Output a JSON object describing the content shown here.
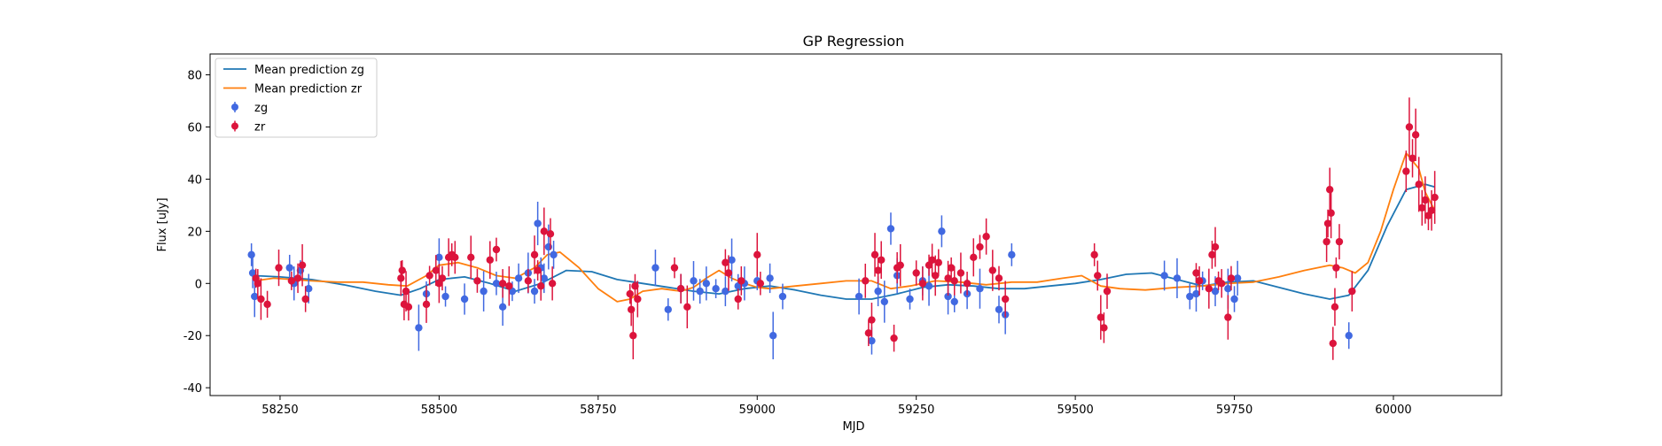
{
  "chart_data": {
    "type": "scatter",
    "title": "GP Regression",
    "xlabel": "MJD",
    "ylabel": "Flux [uJy]",
    "xlim": [
      58140,
      60170
    ],
    "ylim": [
      -43,
      88
    ],
    "xticks": [
      58250,
      58500,
      58750,
      59000,
      59250,
      59500,
      59750,
      60000
    ],
    "yticks": [
      -40,
      -20,
      0,
      20,
      40,
      60,
      80
    ],
    "legend_position": "top-left",
    "grid": false,
    "legend": [
      {
        "label": "Mean prediction zg",
        "kind": "line",
        "color": "#1f77b4"
      },
      {
        "label": "Mean prediction zr",
        "kind": "line",
        "color": "#ff7f0e"
      },
      {
        "label": "zg",
        "kind": "errorbar",
        "color": "#4169e1"
      },
      {
        "label": "zr",
        "kind": "errorbar",
        "color": "#dc143c"
      }
    ],
    "lines": [
      {
        "name": "Mean prediction zg",
        "color": "#1f77b4",
        "x": [
          58210,
          58250,
          58300,
          58350,
          58400,
          58440,
          58470,
          58500,
          58540,
          58580,
          58620,
          58660,
          58700,
          58740,
          58780,
          58820,
          58860,
          58900,
          58940,
          58980,
          59020,
          59060,
          59100,
          59140,
          59180,
          59220,
          59260,
          59300,
          59340,
          59380,
          59420,
          59460,
          59500,
          59540,
          59580,
          59620,
          59660,
          59700,
          59740,
          59780,
          59820,
          59860,
          59900,
          59930,
          59960,
          59990,
          60020,
          60050,
          60065
        ],
        "y": [
          3,
          2.5,
          1.5,
          -0.5,
          -3,
          -4.5,
          -2,
          1.5,
          2.5,
          0,
          -3,
          0,
          5,
          4.5,
          1.5,
          0,
          -1.5,
          -3,
          -4,
          -2,
          -1,
          -2.5,
          -4.5,
          -6,
          -6,
          -4,
          -1.5,
          -0.5,
          -1,
          -2,
          -2,
          -1,
          0,
          1.5,
          3.5,
          4,
          1.5,
          -1,
          0.5,
          1,
          -1.5,
          -4,
          -6,
          -4.5,
          5,
          22,
          36,
          38,
          37
        ]
      },
      {
        "name": "Mean prediction zr",
        "color": "#ff7f0e",
        "x": [
          58210,
          58240,
          58270,
          58300,
          58340,
          58380,
          58420,
          58450,
          58480,
          58500,
          58530,
          58560,
          58590,
          58620,
          58650,
          58670,
          58690,
          58720,
          58750,
          58780,
          58800,
          58820,
          58850,
          58880,
          58900,
          58920,
          58940,
          58960,
          58980,
          59000,
          59020,
          59060,
          59100,
          59140,
          59180,
          59210,
          59240,
          59280,
          59320,
          59360,
          59400,
          59440,
          59480,
          59510,
          59540,
          59570,
          59610,
          59660,
          59700,
          59740,
          59780,
          59820,
          59860,
          59900,
          59920,
          59940,
          59960,
          59980,
          60000,
          60020,
          60040,
          60050,
          60065
        ],
        "y": [
          1,
          2,
          1.5,
          1,
          0.5,
          0.5,
          -0.5,
          -1,
          3,
          7,
          8,
          6,
          3,
          2,
          6,
          11,
          12,
          6,
          -2,
          -7,
          -6,
          -3,
          -2,
          -3,
          -1.5,
          2,
          5,
          2,
          0,
          -1.5,
          -2,
          -1,
          0,
          1,
          1,
          -2,
          -1,
          1,
          0.5,
          -0.5,
          0.5,
          0.5,
          2,
          3,
          -1,
          -2,
          -2.5,
          -1.5,
          -1,
          0,
          0.5,
          2.5,
          5,
          7,
          6,
          4,
          8,
          20,
          36,
          50,
          44,
          35,
          28
        ]
      }
    ],
    "series": [
      {
        "name": "zg",
        "color": "#4169e1",
        "x": [
          58205,
          58207,
          58210,
          58265,
          58272,
          58282,
          58295,
          58468,
          58480,
          58500,
          58510,
          58540,
          58570,
          58590,
          58600,
          58615,
          58625,
          58640,
          58650,
          58655,
          58660,
          58665,
          58672,
          58680,
          58840,
          58860,
          58880,
          58900,
          58910,
          58920,
          58935,
          58950,
          58960,
          58970,
          58980,
          59000,
          59020,
          59025,
          59040,
          59160,
          59180,
          59190,
          59200,
          59210,
          59220,
          59240,
          59260,
          59270,
          59290,
          59300,
          59310,
          59330,
          59350,
          59380,
          59390,
          59400,
          59640,
          59660,
          59680,
          59690,
          59700,
          59720,
          59740,
          59750,
          59755,
          59930
        ],
        "y": [
          11,
          4,
          -5,
          6,
          0,
          5,
          -2,
          -17,
          -4,
          10,
          -5,
          -6,
          -3,
          0,
          -9,
          -3,
          2,
          4,
          -3,
          23,
          6,
          2,
          14,
          11,
          6,
          -10,
          -2,
          1,
          -3,
          0,
          -2,
          -3,
          9,
          -1,
          0,
          1,
          2,
          -20,
          -5,
          -5,
          -22,
          -3,
          -7,
          21,
          3,
          -6,
          1,
          -1,
          20,
          -5,
          -7,
          -4,
          -2,
          -10,
          -12,
          11,
          3,
          2,
          -5,
          -4,
          1,
          -3,
          -2,
          -6,
          2,
          -20
        ]
      },
      {
        "name": "zr",
        "color": "#dc143c",
        "x": [
          58212,
          58215,
          58220,
          58230,
          58248,
          58268,
          58278,
          58285,
          58290,
          58440,
          58442,
          58445,
          58448,
          58452,
          58480,
          58485,
          58495,
          58500,
          58505,
          58515,
          58520,
          58525,
          58550,
          58560,
          58580,
          58590,
          58600,
          58610,
          58640,
          58650,
          58655,
          58660,
          58665,
          58675,
          58678,
          58800,
          58802,
          58805,
          58808,
          58812,
          58870,
          58880,
          58890,
          58950,
          58955,
          58970,
          58975,
          59000,
          59005,
          59170,
          59175,
          59180,
          59185,
          59190,
          59195,
          59215,
          59220,
          59225,
          59250,
          59260,
          59270,
          59275,
          59280,
          59285,
          59300,
          59305,
          59310,
          59320,
          59330,
          59340,
          59350,
          59360,
          59370,
          59380,
          59390,
          59530,
          59535,
          59540,
          59545,
          59550,
          59690,
          59695,
          59710,
          59715,
          59720,
          59725,
          59730,
          59740,
          59745,
          59895,
          59897,
          59900,
          59902,
          59905,
          59908,
          59910,
          59915,
          59935,
          60020,
          60025,
          60030,
          60035,
          60040,
          60045,
          60050,
          60055,
          60060,
          60065
        ],
        "y": [
          2,
          0,
          -6,
          -8,
          6,
          1,
          2,
          7,
          -6,
          2,
          5,
          -8,
          -3,
          -9,
          -8,
          3,
          5,
          0,
          2,
          10,
          11,
          10,
          10,
          1,
          9,
          13,
          0,
          -1,
          1,
          11,
          5,
          -1,
          20,
          19,
          0,
          -4,
          -10,
          -20,
          -1,
          -6,
          6,
          -2,
          -9,
          8,
          4,
          -6,
          1,
          11,
          0,
          1,
          -19,
          -14,
          11,
          5,
          9,
          -21,
          6,
          7,
          4,
          0,
          7,
          9,
          3,
          8,
          2,
          6,
          1,
          4,
          0,
          10,
          14,
          18,
          5,
          2,
          -6,
          11,
          3,
          -13,
          -17,
          -3,
          4,
          1,
          -2,
          11,
          14,
          1,
          0,
          -13,
          2,
          16,
          23,
          36,
          27,
          -23,
          -9,
          6,
          16,
          -3,
          43,
          60,
          48,
          57,
          38,
          29,
          32,
          26,
          28,
          33
        ]
      }
    ]
  }
}
